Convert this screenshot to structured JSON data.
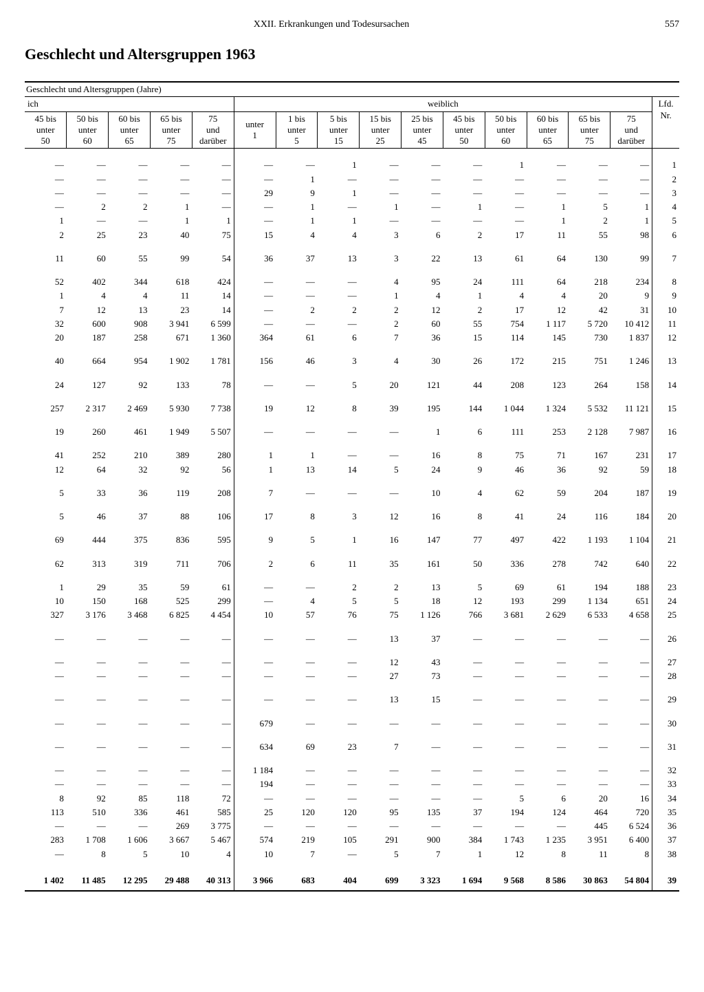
{
  "page": {
    "chapter": "XXII. Erkrankungen und Todesursachen",
    "number": "557",
    "title": "Geschlecht und Altersgruppen 1963"
  },
  "table": {
    "super_header": "Geschlecht und Altersgruppen (Jahre)",
    "ich_label": "ich",
    "weiblich_label": "weiblich",
    "lfd_label_1": "Lfd.",
    "lfd_label_2": "Nr.",
    "col_headers": [
      "45 bis\nunter\n50",
      "50 bis\nunter\n60",
      "60 bis\nunter\n65",
      "65 bis\nunter\n75",
      "75\nund\ndarüber",
      "unter\n1",
      "1 bis\nunter\n5",
      "5 bis\nunter\n15",
      "15 bis\nunter\n25",
      "25 bis\nunter\n45",
      "45 bis\nunter\n50",
      "50 bis\nunter\n60",
      "60 bis\nunter\n65",
      "65 bis\nunter\n75",
      "75\nund\ndarüber"
    ],
    "groups": [
      {
        "rows": [
          {
            "c": [
              "—",
              "—",
              "—",
              "—",
              "—",
              "—",
              "—",
              "1",
              "—",
              "—",
              "—",
              "1",
              "—",
              "—",
              "—"
            ],
            "n": "1"
          },
          {
            "c": [
              "—",
              "—",
              "—",
              "—",
              "—",
              "—",
              "1",
              "—",
              "—",
              "—",
              "—",
              "—",
              "—",
              "—",
              "—"
            ],
            "n": "2"
          },
          {
            "c": [
              "—",
              "—",
              "—",
              "—",
              "—",
              "29",
              "9",
              "1",
              "—",
              "—",
              "—",
              "—",
              "—",
              "—",
              "—"
            ],
            "n": "3"
          },
          {
            "c": [
              "—",
              "2",
              "2",
              "1",
              "—",
              "—",
              "1",
              "—",
              "1",
              "—",
              "1",
              "—",
              "1",
              "5",
              "1"
            ],
            "n": "4"
          },
          {
            "c": [
              "1",
              "—",
              "—",
              "1",
              "1",
              "—",
              "1",
              "1",
              "—",
              "—",
              "—",
              "—",
              "1",
              "2",
              "1"
            ],
            "n": "5"
          },
          {
            "c": [
              "2",
              "25",
              "23",
              "40",
              "75",
              "15",
              "4",
              "4",
              "3",
              "6",
              "2",
              "17",
              "11",
              "55",
              "98"
            ],
            "n": "6"
          }
        ]
      },
      {
        "rows": [
          {
            "c": [
              "11",
              "60",
              "55",
              "99",
              "54",
              "36",
              "37",
              "13",
              "3",
              "22",
              "13",
              "61",
              "64",
              "130",
              "99"
            ],
            "n": "7"
          }
        ]
      },
      {
        "rows": [
          {
            "c": [
              "52",
              "402",
              "344",
              "618",
              "424",
              "—",
              "—",
              "—",
              "4",
              "95",
              "24",
              "111",
              "64",
              "218",
              "234"
            ],
            "n": "8"
          },
          {
            "c": [
              "1",
              "4",
              "4",
              "11",
              "14",
              "—",
              "—",
              "—",
              "1",
              "4",
              "1",
              "4",
              "4",
              "20",
              "9"
            ],
            "n": "9"
          },
          {
            "c": [
              "7",
              "12",
              "13",
              "23",
              "14",
              "—",
              "2",
              "2",
              "2",
              "12",
              "2",
              "17",
              "12",
              "42",
              "31"
            ],
            "n": "10"
          },
          {
            "c": [
              "32",
              "600",
              "908",
              "3 941",
              "6 599",
              "—",
              "—",
              "—",
              "2",
              "60",
              "55",
              "754",
              "1 117",
              "5 720",
              "10 412"
            ],
            "n": "11"
          },
          {
            "c": [
              "20",
              "187",
              "258",
              "671",
              "1 360",
              "364",
              "61",
              "6",
              "7",
              "36",
              "15",
              "114",
              "145",
              "730",
              "1 837"
            ],
            "n": "12"
          }
        ]
      },
      {
        "rows": [
          {
            "c": [
              "40",
              "664",
              "954",
              "1 902",
              "1 781",
              "156",
              "46",
              "3",
              "4",
              "30",
              "26",
              "172",
              "215",
              "751",
              "1 246"
            ],
            "n": "13"
          }
        ]
      },
      {
        "rows": [
          {
            "c": [
              "24",
              "127",
              "92",
              "133",
              "78",
              "—",
              "—",
              "5",
              "20",
              "121",
              "44",
              "208",
              "123",
              "264",
              "158"
            ],
            "n": "14"
          }
        ]
      },
      {
        "rows": [
          {
            "c": [
              "257",
              "2 317",
              "2 469",
              "5 930",
              "7 738",
              "19",
              "12",
              "8",
              "39",
              "195",
              "144",
              "1 044",
              "1 324",
              "5 532",
              "11 121"
            ],
            "n": "15"
          }
        ]
      },
      {
        "rows": [
          {
            "c": [
              "19",
              "260",
              "461",
              "1 949",
              "5 507",
              "—",
              "—",
              "—",
              "—",
              "1",
              "6",
              "111",
              "253",
              "2 128",
              "7 987"
            ],
            "n": "16"
          }
        ]
      },
      {
        "rows": [
          {
            "c": [
              "41",
              "252",
              "210",
              "389",
              "280",
              "1",
              "1",
              "—",
              "—",
              "16",
              "8",
              "75",
              "71",
              "167",
              "231"
            ],
            "n": "17"
          },
          {
            "c": [
              "12",
              "64",
              "32",
              "92",
              "56",
              "1",
              "13",
              "14",
              "5",
              "24",
              "9",
              "46",
              "36",
              "92",
              "59"
            ],
            "n": "18"
          }
        ]
      },
      {
        "rows": [
          {
            "c": [
              "5",
              "33",
              "36",
              "119",
              "208",
              "7",
              "—",
              "—",
              "—",
              "10",
              "4",
              "62",
              "59",
              "204",
              "187"
            ],
            "n": "19"
          }
        ]
      },
      {
        "rows": [
          {
            "c": [
              "5",
              "46",
              "37",
              "88",
              "106",
              "17",
              "8",
              "3",
              "12",
              "16",
              "8",
              "41",
              "24",
              "116",
              "184"
            ],
            "n": "20"
          }
        ]
      },
      {
        "rows": [
          {
            "c": [
              "69",
              "444",
              "375",
              "836",
              "595",
              "9",
              "5",
              "1",
              "16",
              "147",
              "77",
              "497",
              "422",
              "1 193",
              "1 104"
            ],
            "n": "21"
          }
        ]
      },
      {
        "rows": [
          {
            "c": [
              "62",
              "313",
              "319",
              "711",
              "706",
              "2",
              "6",
              "11",
              "35",
              "161",
              "50",
              "336",
              "278",
              "742",
              "640"
            ],
            "n": "22"
          }
        ]
      },
      {
        "rows": [
          {
            "c": [
              "1",
              "29",
              "35",
              "59",
              "61",
              "—",
              "—",
              "2",
              "2",
              "13",
              "5",
              "69",
              "61",
              "194",
              "188"
            ],
            "n": "23"
          },
          {
            "c": [
              "10",
              "150",
              "168",
              "525",
              "299",
              "—",
              "4",
              "5",
              "5",
              "18",
              "12",
              "193",
              "299",
              "1 134",
              "651"
            ],
            "n": "24"
          },
          {
            "c": [
              "327",
              "3 176",
              "3 468",
              "6 825",
              "4 454",
              "10",
              "57",
              "76",
              "75",
              "1 126",
              "766",
              "3 681",
              "2 629",
              "6 533",
              "4 658"
            ],
            "n": "25"
          }
        ]
      },
      {
        "rows": [
          {
            "c": [
              "—",
              "—",
              "—",
              "—",
              "—",
              "—",
              "—",
              "—",
              "13",
              "37",
              "—",
              "—",
              "—",
              "—",
              "—"
            ],
            "n": "26"
          }
        ]
      },
      {
        "rows": [
          {
            "c": [
              "—",
              "—",
              "—",
              "—",
              "—",
              "—",
              "—",
              "—",
              "12",
              "43",
              "—",
              "—",
              "—",
              "—",
              "—"
            ],
            "n": "27"
          },
          {
            "c": [
              "—",
              "—",
              "—",
              "—",
              "—",
              "—",
              "—",
              "—",
              "27",
              "73",
              "—",
              "—",
              "—",
              "—",
              "—"
            ],
            "n": "28"
          }
        ]
      },
      {
        "rows": [
          {
            "c": [
              "—",
              "—",
              "—",
              "—",
              "—",
              "—",
              "—",
              "—",
              "13",
              "15",
              "—",
              "—",
              "—",
              "—",
              "—"
            ],
            "n": "29"
          }
        ]
      },
      {
        "rows": [
          {
            "c": [
              "—",
              "—",
              "—",
              "—",
              "—",
              "679",
              "—",
              "—",
              "—",
              "—",
              "—",
              "—",
              "—",
              "—",
              "—"
            ],
            "n": "30"
          }
        ]
      },
      {
        "rows": [
          {
            "c": [
              "—",
              "—",
              "—",
              "—",
              "—",
              "634",
              "69",
              "23",
              "7",
              "—",
              "—",
              "—",
              "—",
              "—",
              "—"
            ],
            "n": "31"
          }
        ]
      },
      {
        "rows": [
          {
            "c": [
              "—",
              "—",
              "—",
              "—",
              "—",
              "1 184",
              "—",
              "—",
              "—",
              "—",
              "—",
              "—",
              "—",
              "—",
              "—"
            ],
            "n": "32"
          },
          {
            "c": [
              "—",
              "—",
              "—",
              "—",
              "—",
              "194",
              "—",
              "—",
              "—",
              "—",
              "—",
              "—",
              "—",
              "—",
              "—"
            ],
            "n": "33"
          },
          {
            "c": [
              "8",
              "92",
              "85",
              "118",
              "72",
              "—",
              "—",
              "—",
              "—",
              "—",
              "—",
              "5",
              "6",
              "20",
              "16"
            ],
            "n": "34"
          },
          {
            "c": [
              "113",
              "510",
              "336",
              "461",
              "585",
              "25",
              "120",
              "120",
              "95",
              "135",
              "37",
              "194",
              "124",
              "464",
              "720"
            ],
            "n": "35"
          },
          {
            "c": [
              "—",
              "—",
              "—",
              "269",
              "3 775",
              "—",
              "—",
              "—",
              "—",
              "—",
              "—",
              "—",
              "—",
              "445",
              "6 524"
            ],
            "n": "36"
          },
          {
            "c": [
              "283",
              "1 708",
              "1 606",
              "3 667",
              "5 467",
              "574",
              "219",
              "105",
              "291",
              "900",
              "384",
              "1 743",
              "1 235",
              "3 951",
              "6 400"
            ],
            "n": "37"
          },
          {
            "c": [
              "—",
              "8",
              "5",
              "10",
              "4",
              "10",
              "7",
              "—",
              "5",
              "7",
              "1",
              "12",
              "8",
              "11",
              "8"
            ],
            "n": "38"
          }
        ]
      }
    ],
    "total": {
      "c": [
        "1 402",
        "11 485",
        "12 295",
        "29 488",
        "40 313",
        "3 966",
        "683",
        "404",
        "699",
        "3 323",
        "1 694",
        "9 568",
        "8 586",
        "30 863",
        "54 804"
      ],
      "n": "39"
    }
  }
}
